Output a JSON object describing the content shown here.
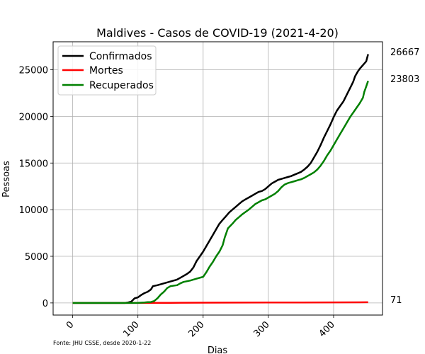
{
  "chart_data": {
    "type": "line",
    "title": "Maldives - Casos de COVID-19 (2021-4-20)",
    "xlabel": "Dias",
    "ylabel": "Pessoas",
    "xlim": [
      -30,
      475
    ],
    "ylim": [
      -1300,
      28000
    ],
    "x_ticks": [
      0,
      100,
      200,
      300,
      400
    ],
    "y_ticks": [
      0,
      5000,
      10000,
      15000,
      20000,
      25000
    ],
    "grid": true,
    "legend_position": "top-left",
    "source_note": "Fonte: JHU CSSE, desde 2020-1-22",
    "series": [
      {
        "name": "Confirmados",
        "color": "#000000",
        "end_label": "26667",
        "points": [
          [
            0,
            0
          ],
          [
            50,
            0
          ],
          [
            80,
            0
          ],
          [
            85,
            50
          ],
          [
            90,
            150
          ],
          [
            95,
            500
          ],
          [
            100,
            600
          ],
          [
            105,
            850
          ],
          [
            110,
            1050
          ],
          [
            115,
            1200
          ],
          [
            120,
            1450
          ],
          [
            123,
            1800
          ],
          [
            130,
            1900
          ],
          [
            140,
            2100
          ],
          [
            150,
            2300
          ],
          [
            160,
            2500
          ],
          [
            165,
            2700
          ],
          [
            170,
            2900
          ],
          [
            175,
            3100
          ],
          [
            180,
            3350
          ],
          [
            185,
            3800
          ],
          [
            190,
            4500
          ],
          [
            195,
            5000
          ],
          [
            200,
            5500
          ],
          [
            205,
            6100
          ],
          [
            210,
            6700
          ],
          [
            215,
            7300
          ],
          [
            220,
            7900
          ],
          [
            225,
            8500
          ],
          [
            230,
            8900
          ],
          [
            235,
            9300
          ],
          [
            240,
            9700
          ],
          [
            245,
            10000
          ],
          [
            250,
            10300
          ],
          [
            255,
            10600
          ],
          [
            260,
            10900
          ],
          [
            265,
            11100
          ],
          [
            270,
            11300
          ],
          [
            275,
            11500
          ],
          [
            280,
            11700
          ],
          [
            285,
            11900
          ],
          [
            290,
            12000
          ],
          [
            295,
            12200
          ],
          [
            300,
            12500
          ],
          [
            305,
            12800
          ],
          [
            310,
            13000
          ],
          [
            315,
            13200
          ],
          [
            320,
            13300
          ],
          [
            325,
            13400
          ],
          [
            330,
            13500
          ],
          [
            335,
            13600
          ],
          [
            340,
            13750
          ],
          [
            345,
            13900
          ],
          [
            350,
            14050
          ],
          [
            355,
            14300
          ],
          [
            360,
            14600
          ],
          [
            365,
            15000
          ],
          [
            370,
            15600
          ],
          [
            375,
            16200
          ],
          [
            380,
            16900
          ],
          [
            385,
            17700
          ],
          [
            390,
            18400
          ],
          [
            395,
            19100
          ],
          [
            400,
            19900
          ],
          [
            405,
            20600
          ],
          [
            410,
            21100
          ],
          [
            415,
            21600
          ],
          [
            420,
            22300
          ],
          [
            425,
            23000
          ],
          [
            430,
            23700
          ],
          [
            433,
            24300
          ],
          [
            437,
            24800
          ],
          [
            440,
            25100
          ],
          [
            445,
            25500
          ],
          [
            450,
            25900
          ],
          [
            453,
            26667
          ]
        ]
      },
      {
        "name": "Mortes",
        "color": "#ff0000",
        "end_label": "71",
        "points": [
          [
            0,
            0
          ],
          [
            100,
            0
          ],
          [
            120,
            10
          ],
          [
            150,
            15
          ],
          [
            200,
            25
          ],
          [
            250,
            35
          ],
          [
            300,
            45
          ],
          [
            350,
            52
          ],
          [
            400,
            60
          ],
          [
            453,
            71
          ]
        ]
      },
      {
        "name": "Recuperados",
        "color": "#008000",
        "end_label": "23803",
        "points": [
          [
            0,
            0
          ],
          [
            80,
            0
          ],
          [
            100,
            10
          ],
          [
            110,
            50
          ],
          [
            115,
            80
          ],
          [
            120,
            100
          ],
          [
            125,
            200
          ],
          [
            130,
            500
          ],
          [
            135,
            900
          ],
          [
            140,
            1200
          ],
          [
            145,
            1600
          ],
          [
            150,
            1800
          ],
          [
            160,
            1900
          ],
          [
            165,
            2100
          ],
          [
            170,
            2250
          ],
          [
            180,
            2400
          ],
          [
            190,
            2600
          ],
          [
            200,
            2800
          ],
          [
            205,
            3300
          ],
          [
            210,
            3900
          ],
          [
            215,
            4400
          ],
          [
            220,
            5000
          ],
          [
            225,
            5500
          ],
          [
            230,
            6200
          ],
          [
            233,
            7000
          ],
          [
            238,
            8000
          ],
          [
            245,
            8500
          ],
          [
            250,
            8900
          ],
          [
            255,
            9200
          ],
          [
            260,
            9500
          ],
          [
            265,
            9750
          ],
          [
            270,
            10000
          ],
          [
            275,
            10300
          ],
          [
            280,
            10600
          ],
          [
            285,
            10800
          ],
          [
            290,
            11000
          ],
          [
            295,
            11100
          ],
          [
            300,
            11300
          ],
          [
            305,
            11500
          ],
          [
            310,
            11700
          ],
          [
            315,
            12000
          ],
          [
            320,
            12400
          ],
          [
            325,
            12700
          ],
          [
            330,
            12850
          ],
          [
            335,
            12950
          ],
          [
            340,
            13050
          ],
          [
            345,
            13150
          ],
          [
            350,
            13250
          ],
          [
            355,
            13400
          ],
          [
            360,
            13600
          ],
          [
            365,
            13800
          ],
          [
            370,
            14000
          ],
          [
            375,
            14300
          ],
          [
            380,
            14700
          ],
          [
            385,
            15200
          ],
          [
            390,
            15800
          ],
          [
            395,
            16300
          ],
          [
            400,
            16900
          ],
          [
            405,
            17500
          ],
          [
            410,
            18100
          ],
          [
            415,
            18700
          ],
          [
            420,
            19300
          ],
          [
            425,
            19900
          ],
          [
            430,
            20400
          ],
          [
            435,
            20900
          ],
          [
            440,
            21400
          ],
          [
            445,
            22000
          ],
          [
            447,
            22600
          ],
          [
            450,
            23200
          ],
          [
            453,
            23803
          ]
        ]
      }
    ]
  }
}
